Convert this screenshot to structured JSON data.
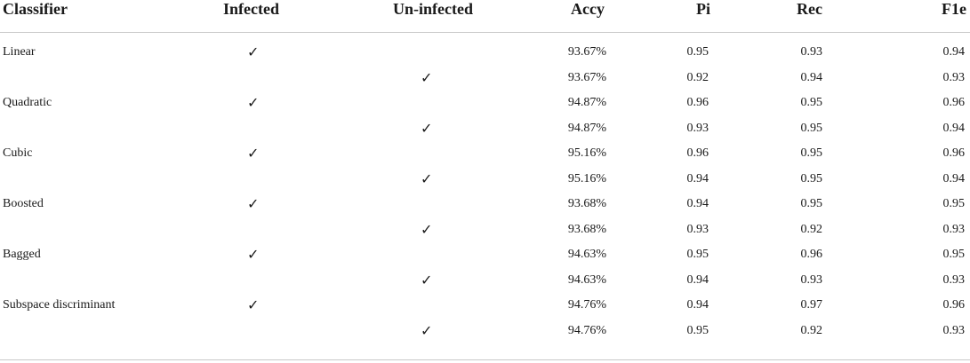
{
  "table": {
    "headers": {
      "classifier": "Classifier",
      "infected": "Infected",
      "uninfected": "Un-infected",
      "accy": "Accy",
      "pi": "Pi",
      "rec": "Rec",
      "f1e": "F1e"
    },
    "check_mark": "✓",
    "rows": [
      {
        "classifier": "Linear",
        "infected": "✓",
        "uninfected": "",
        "accy": "93.67%",
        "pi": "0.95",
        "rec": "0.93",
        "f1e": "0.94"
      },
      {
        "classifier": "",
        "infected": "",
        "uninfected": "✓",
        "accy": "93.67%",
        "pi": "0.92",
        "rec": "0.94",
        "f1e": "0.93"
      },
      {
        "classifier": "Quadratic",
        "infected": "✓",
        "uninfected": "",
        "accy": "94.87%",
        "pi": "0.96",
        "rec": "0.95",
        "f1e": "0.96"
      },
      {
        "classifier": "",
        "infected": "",
        "uninfected": "✓",
        "accy": "94.87%",
        "pi": "0.93",
        "rec": "0.95",
        "f1e": "0.94"
      },
      {
        "classifier": "Cubic",
        "infected": "✓",
        "uninfected": "",
        "accy": "95.16%",
        "pi": "0.96",
        "rec": "0.95",
        "f1e": "0.96"
      },
      {
        "classifier": "",
        "infected": "",
        "uninfected": "✓",
        "accy": "95.16%",
        "pi": "0.94",
        "rec": "0.95",
        "f1e": "0.94"
      },
      {
        "classifier": "Boosted",
        "infected": "✓",
        "uninfected": "",
        "accy": "93.68%",
        "pi": "0.94",
        "rec": "0.95",
        "f1e": "0.95"
      },
      {
        "classifier": "",
        "infected": "",
        "uninfected": "✓",
        "accy": "93.68%",
        "pi": "0.93",
        "rec": "0.92",
        "f1e": "0.93"
      },
      {
        "classifier": "Bagged",
        "infected": "✓",
        "uninfected": "",
        "accy": "94.63%",
        "pi": "0.95",
        "rec": "0.96",
        "f1e": "0.95"
      },
      {
        "classifier": "",
        "infected": "",
        "uninfected": "✓",
        "accy": "94.63%",
        "pi": "0.94",
        "rec": "0.93",
        "f1e": "0.93"
      },
      {
        "classifier": "Subspace discriminant",
        "infected": "✓",
        "uninfected": "",
        "accy": "94.76%",
        "pi": "0.94",
        "rec": "0.97",
        "f1e": "0.96"
      },
      {
        "classifier": "",
        "infected": "",
        "uninfected": "✓",
        "accy": "94.76%",
        "pi": "0.95",
        "rec": "0.92",
        "f1e": "0.93"
      }
    ]
  }
}
